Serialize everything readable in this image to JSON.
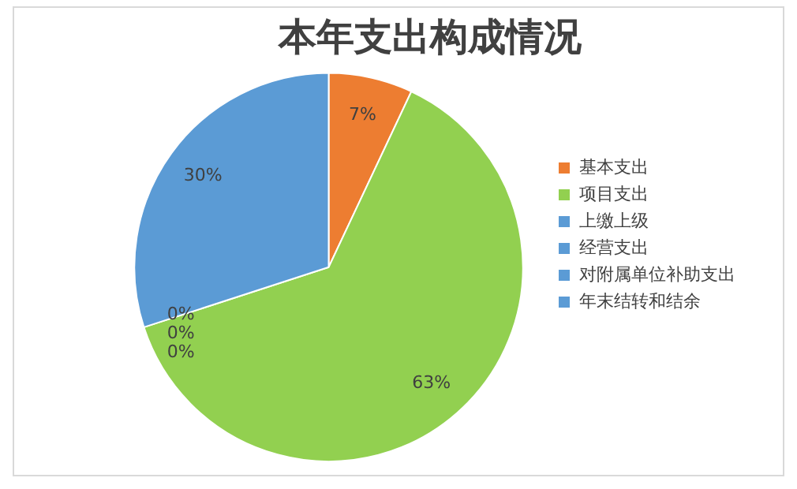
{
  "chart_data": {
    "type": "pie",
    "title": "本年支出构成情况",
    "categories": [
      "基本支出",
      "项目支出",
      "上缴上级",
      "经营支出",
      "对附属单位补助支出",
      "年末结转和结余"
    ],
    "values": [
      7,
      63,
      0,
      0,
      0,
      30
    ],
    "colors": [
      "#ed7d31",
      "#92d050",
      "#5b9bd5",
      "#5b9bd5",
      "#5b9bd5",
      "#5b9bd5"
    ],
    "value_labels": [
      "7%",
      "63%",
      "0%",
      "0%",
      "0%",
      "30%"
    ],
    "legend": "right"
  }
}
